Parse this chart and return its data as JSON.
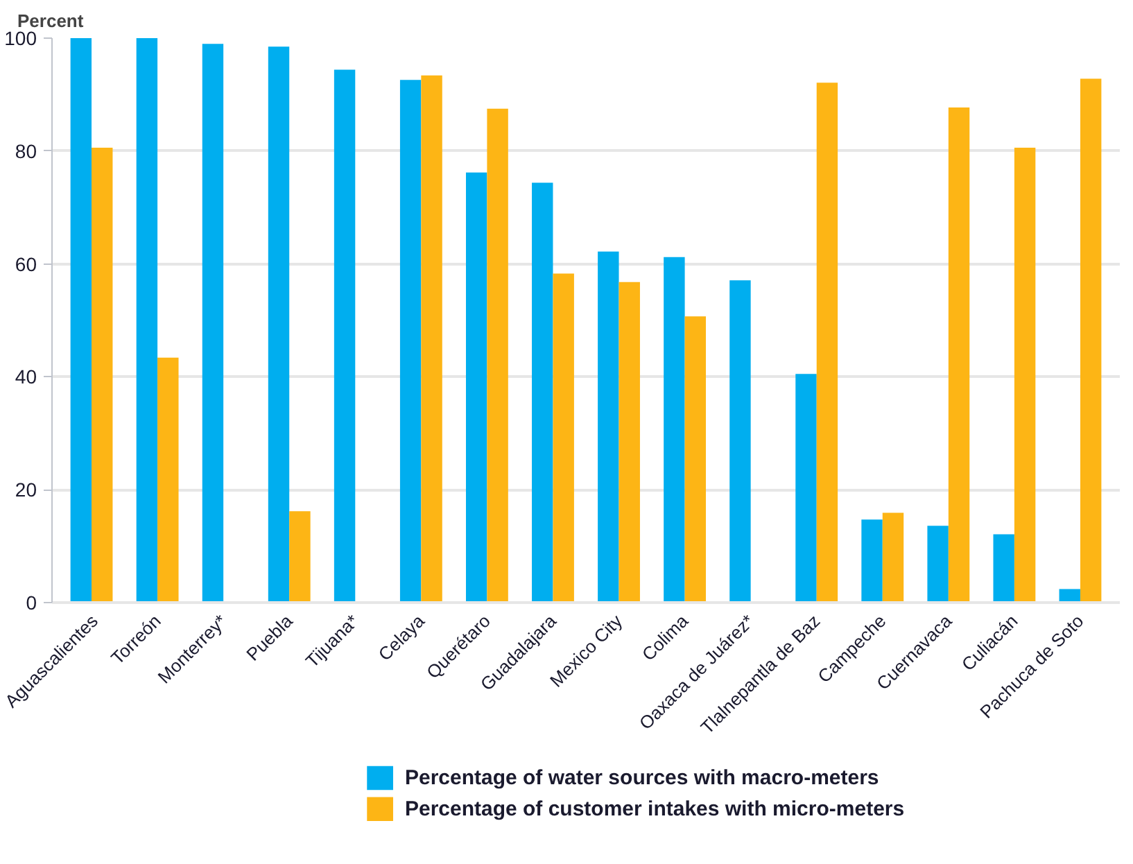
{
  "chart_data": {
    "type": "bar",
    "ylabel": "Percent",
    "categories": [
      "Aguascalientes",
      "Torreón",
      "Monterrey*",
      "Puebla",
      "Tijuana*",
      "Celaya",
      "Querétaro",
      "Guadalajara",
      "Mexico City",
      "Colima",
      "Oaxaca de Juárez*",
      "Tlalnepantla de Baz",
      "Campeche",
      "Cuernavaca",
      "Culiacán",
      "Pachuca de Soto"
    ],
    "series": [
      {
        "name": "Percentage of water sources with macro-meters",
        "color": "#00aeef",
        "values": [
          100,
          100,
          99.0,
          98.5,
          94.4,
          92.6,
          76.2,
          74.4,
          62.2,
          61.2,
          57.1,
          40.5,
          14.7,
          13.6,
          12.1,
          2.4
        ]
      },
      {
        "name": "Percentage of customer intakes with micro-meters",
        "color": "#fdb515",
        "values": [
          80.6,
          43.4,
          null,
          16.2,
          null,
          93.4,
          87.5,
          58.3,
          56.8,
          50.7,
          null,
          92.1,
          15.9,
          87.7,
          80.6,
          92.8
        ]
      }
    ],
    "ylim": [
      0,
      100
    ],
    "yticks": [
      0,
      20,
      40,
      60,
      80,
      100
    ],
    "grid": "y",
    "legend": "bottom"
  }
}
